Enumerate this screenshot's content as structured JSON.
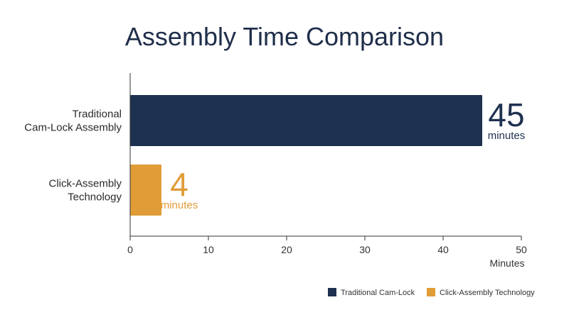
{
  "chart_data": {
    "type": "bar",
    "orientation": "horizontal",
    "title": "Assembly Time Comparison",
    "xlabel": "Minutes",
    "ylabel": "",
    "xlim": [
      0,
      50
    ],
    "xticks": [
      0,
      10,
      20,
      30,
      40,
      50
    ],
    "grid": false,
    "legend_position": "bottom-right",
    "categories": [
      "Traditional\nCam-Lock Assembly",
      "Click-Assembly\nTechnology"
    ],
    "values": [
      45,
      4
    ],
    "colors": [
      "#1f3150",
      "#e09c37"
    ],
    "data_labels": [
      {
        "value": "45",
        "unit": "minutes"
      },
      {
        "value": "4",
        "unit": "minutes"
      }
    ],
    "legend": [
      "Traditional Cam-Lock",
      "Click-Assembly Technology"
    ]
  }
}
